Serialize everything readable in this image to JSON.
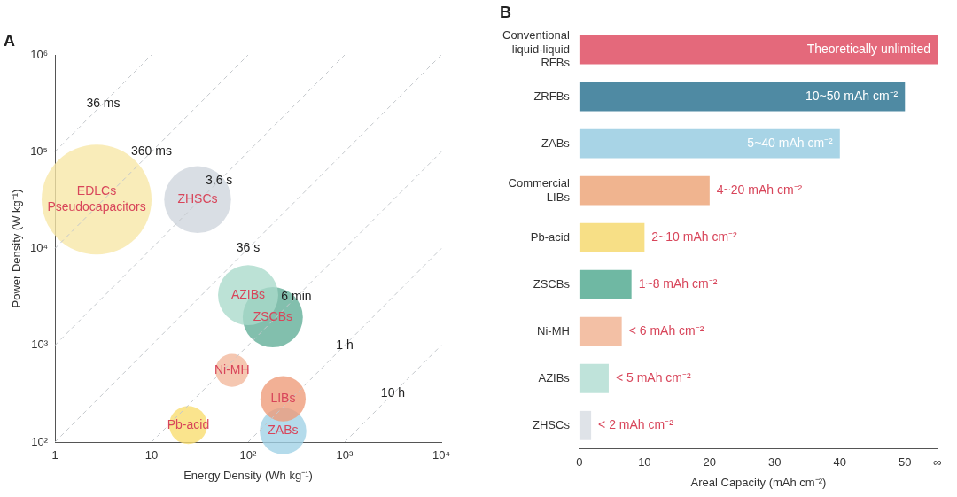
{
  "chart_data": [
    {
      "type": "bubble",
      "title": "A",
      "xlabel": "Energy Density (Wh kg⁻¹)",
      "ylabel": "Power Density (W kg⁻¹)",
      "log": "xy",
      "grid": false,
      "legend": false,
      "line_style": "dashed",
      "xlim": [
        1,
        10000
      ],
      "xticks": [
        1,
        10,
        {
          "value": 100,
          "label": "10²"
        },
        {
          "value": 1000,
          "label": "10³"
        },
        {
          "value": 10000,
          "label": "10⁴"
        }
      ],
      "ylim": [
        100,
        1000000
      ],
      "yticks": [
        {
          "value": 100,
          "label": "10²"
        },
        {
          "value": 1000,
          "label": "10³"
        },
        {
          "value": 10000,
          "label": "10⁴"
        },
        {
          "value": 100000,
          "label": "10⁵"
        },
        {
          "value": 1000000,
          "label": "10⁶"
        }
      ],
      "series": [
        {
          "type": "line",
          "color": "#c4c8cc",
          "x": [
            1,
            10
          ],
          "values": [
            100000,
            1000000
          ]
        },
        {
          "type": "line",
          "color": "#c4c8cc",
          "x": [
            1,
            100
          ],
          "values": [
            10000,
            1000000
          ]
        },
        {
          "type": "line",
          "color": "#c4c8cc",
          "x": [
            1,
            1000
          ],
          "values": [
            1000,
            1000000
          ]
        },
        {
          "type": "line",
          "color": "#c4c8cc",
          "x": [
            1,
            10000
          ],
          "values": [
            100,
            1000000
          ]
        },
        {
          "type": "line",
          "color": "#c4c8cc",
          "x": [
            10,
            10000
          ],
          "values": [
            100,
            100000
          ]
        },
        {
          "type": "line",
          "color": "#c4c8cc",
          "x": [
            100,
            10000
          ],
          "values": [
            100,
            10000
          ]
        },
        {
          "type": "line",
          "color": "#c4c8cc",
          "x": [
            1000,
            10000
          ],
          "values": [
            100,
            1000
          ]
        },
        {
          "name": "EDLCs\nPseudocapacitors",
          "color": "#f7e7a6",
          "x": [
            2.7
          ],
          "values": [
            32000
          ],
          "sizes": [
            1
          ]
        },
        {
          "name": "ZHSCs",
          "color": "#cfd5dc",
          "x": [
            30
          ],
          "values": [
            32000
          ],
          "sizes": [
            0.37
          ]
        },
        {
          "name": "AZIBs",
          "color": "#a9dacb",
          "x": [
            100
          ],
          "values": [
            3300
          ],
          "sizes": [
            0.3
          ]
        },
        {
          "name": "ZSCBs",
          "color": "#5fae96",
          "x": [
            180
          ],
          "values": [
            1950
          ],
          "sizes": [
            0.3
          ]
        },
        {
          "name": "Ni-MH",
          "color": "#f2b79b",
          "x": [
            68
          ],
          "values": [
            550
          ],
          "sizes": [
            0.09
          ]
        },
        {
          "name": "LIBs",
          "color": "#ee9a78",
          "x": [
            230
          ],
          "values": [
            280
          ],
          "sizes": [
            0.17
          ]
        },
        {
          "name": "ZABs",
          "color": "#9fd1e6",
          "x": [
            230
          ],
          "values": [
            130
          ],
          "sizes": [
            0.18
          ]
        },
        {
          "name": "Pb-acid",
          "color": "#f8dc6e",
          "x": [
            24
          ],
          "values": [
            150
          ],
          "sizes": [
            0.12
          ]
        }
      ],
      "annotations": [
        {
          "text": "36 ms",
          "x": 3.16,
          "y": 316000
        },
        {
          "text": "360 ms",
          "x": 10,
          "y": 100000
        },
        {
          "text": "3.6 s",
          "x": 50,
          "y": 50000
        },
        {
          "text": "36 s",
          "x": 100,
          "y": 10000
        },
        {
          "text": "6 min",
          "x": 316,
          "y": 3160
        },
        {
          "text": "1 h",
          "x": 1000,
          "y": 1000
        },
        {
          "text": "10 h",
          "x": 3160,
          "y": 316
        }
      ]
    },
    {
      "type": "bar",
      "title": "B",
      "orientation": "horizontal",
      "xlabel": "Areal Capacity (mAh cm⁻²)",
      "grid": false,
      "legend": false,
      "categories": [
        "Conventional\nliquid-liquid\nRFBs",
        "ZRFBs",
        "ZABs",
        "Commercial\nLIBs",
        "Pb-acid",
        "ZSCBs",
        "Ni-MH",
        "AZIBs",
        "ZHSCs"
      ],
      "values": [
        55,
        50,
        40,
        20,
        10,
        8,
        6.5,
        4.5,
        1.8
      ],
      "colors": [
        "#e4697b",
        "#4f8aa3",
        "#a8d4e6",
        "#f0b48f",
        "#f7df86",
        "#6fb8a3",
        "#f3c0a5",
        "#bfe3da",
        "#dfe3e8"
      ],
      "value_labels": [
        "Theoretically unlimited",
        "10~50 mAh cm⁻²",
        "5~40 mAh cm⁻²",
        "4~20 mAh cm⁻²",
        "2~10 mAh cm⁻²",
        "1~8 mAh cm⁻²",
        "< 6 mAh cm⁻²",
        "< 5 mAh cm⁻²",
        "< 2 mAh cm⁻²"
      ],
      "xlim": [
        0,
        55
      ],
      "xticks": [
        0,
        10,
        20,
        30,
        40,
        50,
        {
          "value": 55,
          "label": "∞"
        }
      ]
    }
  ]
}
